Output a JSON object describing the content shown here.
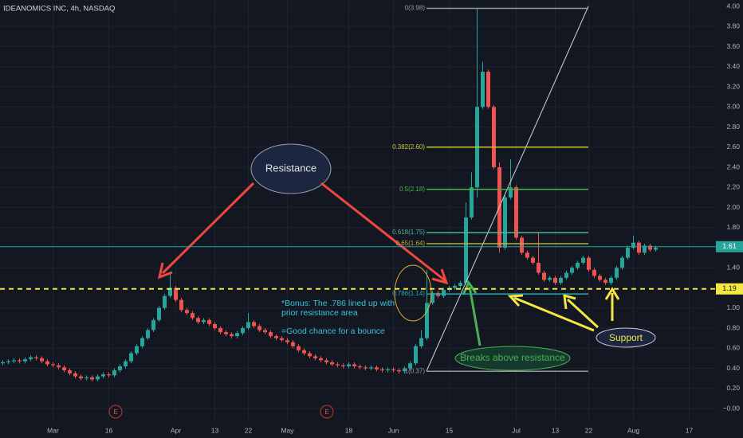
{
  "chart_data": {
    "type": "candlestick",
    "title": "IDEANOMICS INC, 4h, NASDAQ",
    "up_color": "#26a69a",
    "down_color": "#ef5350",
    "grid": true,
    "ylim": [
      0,
      4
    ],
    "yticks": [
      {
        "value": 4,
        "label": "4.00"
      },
      {
        "value": 3.8,
        "label": "3.80"
      },
      {
        "value": 3.6,
        "label": "3.60"
      },
      {
        "value": 3.4,
        "label": "3.40"
      },
      {
        "value": 3.2,
        "label": "3.20"
      },
      {
        "value": 3,
        "label": "3.00"
      },
      {
        "value": 2.8,
        "label": "2.80"
      },
      {
        "value": 2.6,
        "label": "2.60"
      },
      {
        "value": 2.4,
        "label": "2.40"
      },
      {
        "value": 2.2,
        "label": "2.20"
      },
      {
        "value": 2,
        "label": "2.00"
      },
      {
        "value": 1.8,
        "label": "1.80"
      },
      {
        "value": 1.4,
        "label": "1.40"
      },
      {
        "value": 1,
        "label": "1.00"
      },
      {
        "value": 0.8,
        "label": "0.80"
      },
      {
        "value": 0.6,
        "label": "0.60"
      },
      {
        "value": 0.4,
        "label": "0.40"
      },
      {
        "value": 0.2,
        "label": "0.20"
      },
      {
        "value": 0,
        "label": "−0.00"
      }
    ],
    "categories": [
      null,
      null,
      null,
      null,
      null,
      null,
      null,
      null,
      null,
      "Mar",
      null,
      null,
      null,
      null,
      null,
      null,
      null,
      null,
      null,
      "16",
      null,
      null,
      null,
      null,
      null,
      null,
      null,
      null,
      null,
      null,
      null,
      "Apr",
      null,
      null,
      null,
      null,
      null,
      null,
      "13",
      null,
      null,
      null,
      null,
      null,
      "22",
      null,
      null,
      null,
      null,
      null,
      null,
      "May",
      null,
      null,
      null,
      null,
      null,
      null,
      null,
      null,
      null,
      null,
      "18",
      null,
      null,
      null,
      null,
      null,
      null,
      null,
      "Jun",
      null,
      null,
      null,
      null,
      null,
      null,
      null,
      null,
      null,
      "15",
      null,
      null,
      null,
      null,
      null,
      null,
      null,
      null,
      null,
      null,
      null,
      "Jul",
      null,
      null,
      null,
      null,
      null,
      null,
      "13",
      null,
      null,
      null,
      null,
      null,
      "22",
      null,
      null,
      null,
      null,
      null,
      null,
      null,
      "Aug",
      null,
      null,
      null,
      null,
      null,
      null,
      null,
      null,
      null,
      "17",
      null
    ],
    "open": [
      0.45,
      0.46,
      0.47,
      0.48,
      0.47,
      0.49,
      0.51,
      0.5,
      0.47,
      0.44,
      0.43,
      0.41,
      0.38,
      0.35,
      0.32,
      0.3,
      0.31,
      0.29,
      0.32,
      0.34,
      0.33,
      0.38,
      0.42,
      0.47,
      0.55,
      0.62,
      0.7,
      0.78,
      0.88,
      1.0,
      1.12,
      1.2,
      1.08,
      0.98,
      0.95,
      0.9,
      0.86,
      0.88,
      0.84,
      0.8,
      0.76,
      0.74,
      0.72,
      0.75,
      0.8,
      0.86,
      0.82,
      0.78,
      0.76,
      0.72,
      0.7,
      0.68,
      0.66,
      0.62,
      0.58,
      0.55,
      0.52,
      0.5,
      0.48,
      0.46,
      0.44,
      0.43,
      0.42,
      0.44,
      0.42,
      0.41,
      0.4,
      0.41,
      0.39,
      0.38,
      0.39,
      0.38,
      0.37,
      0.4,
      0.45,
      0.62,
      0.7,
      1.05,
      1.15,
      1.12,
      1.18,
      1.2,
      1.22,
      1.25,
      1.9,
      2.2,
      3.0,
      3.35,
      3.0,
      2.4,
      1.6,
      2.1,
      2.2,
      1.7,
      1.55,
      1.5,
      1.45,
      1.35,
      1.28,
      1.3,
      1.25,
      1.3,
      1.35,
      1.4,
      1.45,
      1.5,
      1.38,
      1.32,
      1.28,
      1.25,
      1.3,
      1.4,
      1.5,
      1.6,
      1.65,
      1.55,
      1.62,
      1.58,
      null,
      null,
      null,
      null,
      null,
      null,
      null
    ],
    "high": [
      0.48,
      0.49,
      0.5,
      0.5,
      0.51,
      0.53,
      0.53,
      0.52,
      0.49,
      0.46,
      0.45,
      0.43,
      0.4,
      0.37,
      0.34,
      0.33,
      0.33,
      0.34,
      0.36,
      0.36,
      0.4,
      0.44,
      0.49,
      0.57,
      0.64,
      0.72,
      0.8,
      0.9,
      1.02,
      1.14,
      1.35,
      1.22,
      1.1,
      1.0,
      0.97,
      0.92,
      0.9,
      0.9,
      0.86,
      0.82,
      0.78,
      0.76,
      0.77,
      0.82,
      0.95,
      0.88,
      0.84,
      0.8,
      0.78,
      0.74,
      0.72,
      0.7,
      0.68,
      0.64,
      0.6,
      0.57,
      0.54,
      0.52,
      0.5,
      0.48,
      0.46,
      0.45,
      0.46,
      0.46,
      0.44,
      0.43,
      0.43,
      0.43,
      0.41,
      0.41,
      0.41,
      0.4,
      0.42,
      0.47,
      0.64,
      0.78,
      1.38,
      1.17,
      1.17,
      1.2,
      1.22,
      1.24,
      1.27,
      2.05,
      2.35,
      3.98,
      3.45,
      3.37,
      3.02,
      2.45,
      2.12,
      2.48,
      2.22,
      1.72,
      1.57,
      1.52,
      1.75,
      1.37,
      1.32,
      1.32,
      1.32,
      1.37,
      1.42,
      1.47,
      1.52,
      1.52,
      1.4,
      1.34,
      1.3,
      1.32,
      1.42,
      1.52,
      1.62,
      1.72,
      1.67,
      1.64,
      1.64,
      1.62,
      null,
      null,
      null,
      null,
      null,
      null,
      null
    ],
    "low": [
      0.43,
      0.44,
      0.45,
      0.45,
      0.45,
      0.47,
      0.48,
      0.45,
      0.42,
      0.41,
      0.39,
      0.36,
      0.33,
      0.3,
      0.28,
      0.28,
      0.27,
      0.27,
      0.3,
      0.31,
      0.31,
      0.36,
      0.4,
      0.45,
      0.53,
      0.6,
      0.68,
      0.76,
      0.86,
      0.98,
      1.1,
      1.06,
      0.96,
      0.93,
      0.88,
      0.84,
      0.84,
      0.82,
      0.78,
      0.74,
      0.72,
      0.7,
      0.7,
      0.73,
      0.78,
      0.8,
      0.76,
      0.74,
      0.7,
      0.68,
      0.66,
      0.64,
      0.6,
      0.56,
      0.53,
      0.5,
      0.48,
      0.46,
      0.44,
      0.42,
      0.41,
      0.4,
      0.4,
      0.4,
      0.39,
      0.38,
      0.38,
      0.37,
      0.36,
      0.36,
      0.36,
      0.35,
      0.35,
      0.38,
      0.43,
      0.6,
      0.68,
      1.03,
      1.1,
      1.1,
      1.16,
      1.18,
      1.2,
      1.23,
      1.88,
      2.1,
      2.98,
      2.98,
      2.38,
      1.55,
      1.58,
      2.08,
      1.68,
      1.53,
      1.48,
      1.43,
      1.33,
      1.26,
      1.26,
      1.23,
      1.23,
      1.28,
      1.33,
      1.38,
      1.43,
      1.36,
      1.3,
      1.26,
      1.23,
      1.23,
      1.28,
      1.38,
      1.48,
      1.58,
      1.53,
      1.53,
      1.56,
      1.56,
      null,
      null,
      null,
      null,
      null,
      null,
      null
    ],
    "close": [
      0.46,
      0.47,
      0.48,
      0.47,
      0.49,
      0.51,
      0.5,
      0.47,
      0.44,
      0.43,
      0.41,
      0.38,
      0.35,
      0.32,
      0.3,
      0.31,
      0.29,
      0.32,
      0.34,
      0.33,
      0.38,
      0.42,
      0.47,
      0.55,
      0.62,
      0.7,
      0.78,
      0.88,
      1.0,
      1.12,
      1.2,
      1.08,
      0.98,
      0.95,
      0.9,
      0.86,
      0.88,
      0.84,
      0.8,
      0.76,
      0.74,
      0.72,
      0.75,
      0.8,
      0.86,
      0.82,
      0.78,
      0.76,
      0.72,
      0.7,
      0.68,
      0.66,
      0.62,
      0.58,
      0.55,
      0.52,
      0.5,
      0.48,
      0.46,
      0.44,
      0.43,
      0.42,
      0.44,
      0.42,
      0.41,
      0.4,
      0.41,
      0.39,
      0.38,
      0.39,
      0.38,
      0.37,
      0.4,
      0.45,
      0.62,
      0.7,
      1.05,
      1.15,
      1.12,
      1.18,
      1.2,
      1.22,
      1.25,
      1.9,
      2.2,
      3.0,
      3.35,
      3.0,
      2.4,
      1.6,
      2.1,
      2.2,
      1.7,
      1.55,
      1.5,
      1.45,
      1.35,
      1.28,
      1.3,
      1.25,
      1.3,
      1.35,
      1.4,
      1.45,
      1.5,
      1.38,
      1.32,
      1.28,
      1.25,
      1.3,
      1.4,
      1.5,
      1.6,
      1.65,
      1.55,
      1.62,
      1.58,
      1.6,
      null,
      null,
      null,
      null,
      null,
      null,
      null
    ],
    "support_level": 1.19,
    "support_color": "#f5e642",
    "current_price": 1.61,
    "current_color": "#26a69a",
    "fib_levels": [
      {
        "label": "0(3.98)",
        "value": 3.98,
        "color": "#9598a1"
      },
      {
        "label": "0.382(2.60)",
        "value": 2.6,
        "color": "#c9c932"
      },
      {
        "label": "0.5(2.18)",
        "value": 2.18,
        "color": "#4caf50"
      },
      {
        "label": "0.618(1.75)",
        "value": 1.75,
        "color": "#4db69a"
      },
      {
        "label": "0.65(1.64)",
        "value": 1.64,
        "color": "#c8a832"
      },
      {
        "label": "0.786(1.14)",
        "value": 1.14,
        "color": "#26a6b0"
      },
      {
        "label": "1(0.37)",
        "value": 0.37,
        "color": "#9598a1"
      }
    ],
    "annotations": {
      "resistance": "Resistance",
      "bonus": [
        "*Bonus: The .786 lined up with",
        "prior resistance area",
        "=Good chance for a bounce"
      ],
      "breaks": "Breaks above resistance",
      "support": "Support",
      "earnings": [
        "E",
        "E"
      ]
    }
  }
}
